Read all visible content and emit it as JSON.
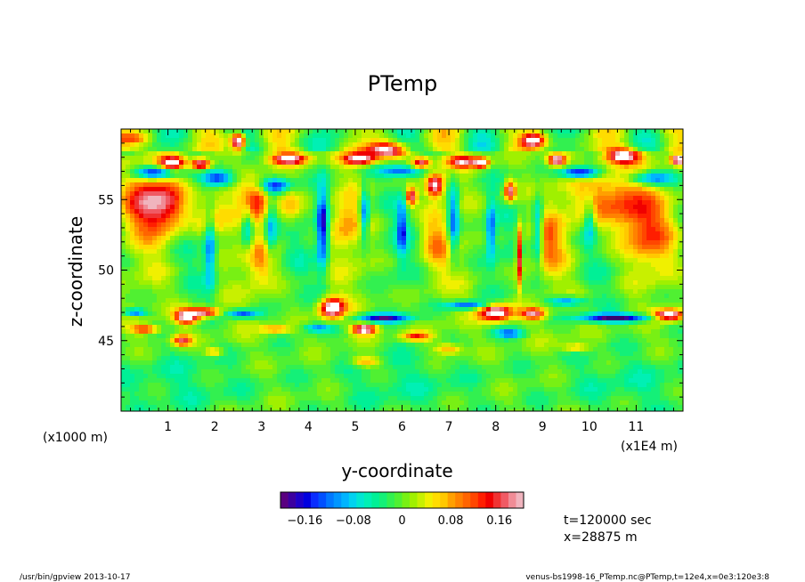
{
  "chart_data": {
    "type": "heatmap",
    "title": "PTemp",
    "xlabel": "y-coordinate",
    "ylabel": "z-coordinate",
    "x_unit_left": "(x1000 m)",
    "x_unit_right": "(x1E4 m)",
    "xlim": [
      0,
      12
    ],
    "ylim": [
      40,
      60
    ],
    "x_ticks": [
      "1",
      "2",
      "3",
      "4",
      "5",
      "6",
      "7",
      "8",
      "9",
      "10",
      "11"
    ],
    "y_ticks": [
      "45",
      "50",
      "55"
    ],
    "colorbar": {
      "range": [
        -0.2,
        0.2
      ],
      "tick_labels": [
        "−0.16",
        "−0.08",
        "0",
        "0.08",
        "0.16"
      ],
      "tick_values": [
        -0.16,
        -0.08,
        0,
        0.08,
        0.16
      ],
      "colors": [
        "#5a0080",
        "#3c00a0",
        "#1e00c8",
        "#0000e0",
        "#0a2dff",
        "#0050ff",
        "#0078ff",
        "#0096ff",
        "#00b4ff",
        "#00d2f0",
        "#00e6d2",
        "#00f0b4",
        "#00f096",
        "#14f078",
        "#32f050",
        "#50f032",
        "#78f014",
        "#a0f000",
        "#c8f000",
        "#f0f000",
        "#ffdc00",
        "#ffc800",
        "#ffa000",
        "#ff8200",
        "#ff6400",
        "#ff4600",
        "#ff1e00",
        "#f00000",
        "#f03232",
        "#f05a64",
        "#f08c96",
        "#f0b4be"
      ]
    },
    "annotations": {
      "time": "t=120000 sec",
      "position": "x=28875 m"
    }
  },
  "footer": {
    "left": "/usr/bin/gpview  2013-10-17",
    "right": "venus-bs1998-16_PTemp.nc@PTemp,t=12e4,x=0e3:120e3:8"
  }
}
